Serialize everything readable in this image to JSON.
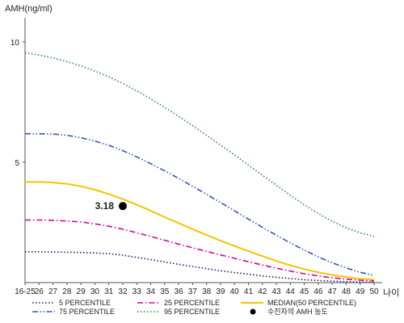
{
  "chart_data": {
    "type": "line",
    "ylabel": "AMH(ng/ml)",
    "xlabel": "나이",
    "categories": [
      "16-25",
      "26",
      "27",
      "28",
      "29",
      "30",
      "31",
      "32",
      "33",
      "34",
      "35",
      "36",
      "37",
      "38",
      "39",
      "40",
      "41",
      "42",
      "43",
      "44",
      "45",
      "46",
      "47",
      "48",
      "49",
      "50"
    ],
    "yticks": [
      5,
      10
    ],
    "ylim": [
      0,
      11
    ],
    "grid": false,
    "series": [
      {
        "name": "5 PERCENTILE",
        "color": "#1a1a6e",
        "dash": "dotted",
        "values": [
          1.28,
          1.28,
          1.27,
          1.26,
          1.25,
          1.23,
          1.2,
          1.14,
          1.05,
          0.96,
          0.86,
          0.76,
          0.67,
          0.58,
          0.49,
          0.42,
          0.35,
          0.28,
          0.22,
          0.17,
          0.12,
          0.09,
          0.06,
          0.04,
          0.02,
          0.02
        ]
      },
      {
        "name": "25 PERCENTILE",
        "color": "#d6009a",
        "dash": "dashdot",
        "values": [
          2.6,
          2.6,
          2.59,
          2.56,
          2.52,
          2.44,
          2.34,
          2.22,
          2.07,
          1.92,
          1.76,
          1.6,
          1.45,
          1.3,
          1.15,
          1.01,
          0.87,
          0.73,
          0.6,
          0.48,
          0.37,
          0.28,
          0.2,
          0.14,
          0.1,
          0.07
        ]
      },
      {
        "name": "MEDIAN(50 PERCENTILE)",
        "color": "#f2c500",
        "dash": "solid",
        "values": [
          4.18,
          4.18,
          4.16,
          4.1,
          4.0,
          3.86,
          3.68,
          3.47,
          3.24,
          2.98,
          2.72,
          2.47,
          2.22,
          1.98,
          1.74,
          1.52,
          1.31,
          1.1,
          0.9,
          0.72,
          0.56,
          0.43,
          0.32,
          0.23,
          0.16,
          0.12
        ]
      },
      {
        "name": "75 PERCENTILE",
        "color": "#3355bb",
        "dash": "dashdotdot",
        "values": [
          6.18,
          6.18,
          6.17,
          6.12,
          6.02,
          5.88,
          5.7,
          5.48,
          5.22,
          4.94,
          4.64,
          4.33,
          4.0,
          3.67,
          3.33,
          2.98,
          2.64,
          2.3,
          1.97,
          1.65,
          1.35,
          1.07,
          0.82,
          0.61,
          0.43,
          0.3
        ]
      },
      {
        "name": "95 PERCENTILE",
        "color": "#2e8b3c",
        "dash": "dotted",
        "values": [
          9.55,
          9.45,
          9.33,
          9.18,
          9.0,
          8.79,
          8.55,
          8.27,
          7.96,
          7.63,
          7.28,
          6.91,
          6.52,
          6.12,
          5.71,
          5.3,
          4.88,
          4.46,
          4.04,
          3.63,
          3.23,
          2.87,
          2.55,
          2.28,
          2.07,
          1.92
        ]
      }
    ],
    "marker": {
      "name": "수진자의 AMH 농도",
      "category": "32",
      "value": 3.18,
      "label": "3.18",
      "color": "#000000"
    },
    "legend": {
      "placement": "bottom"
    }
  }
}
